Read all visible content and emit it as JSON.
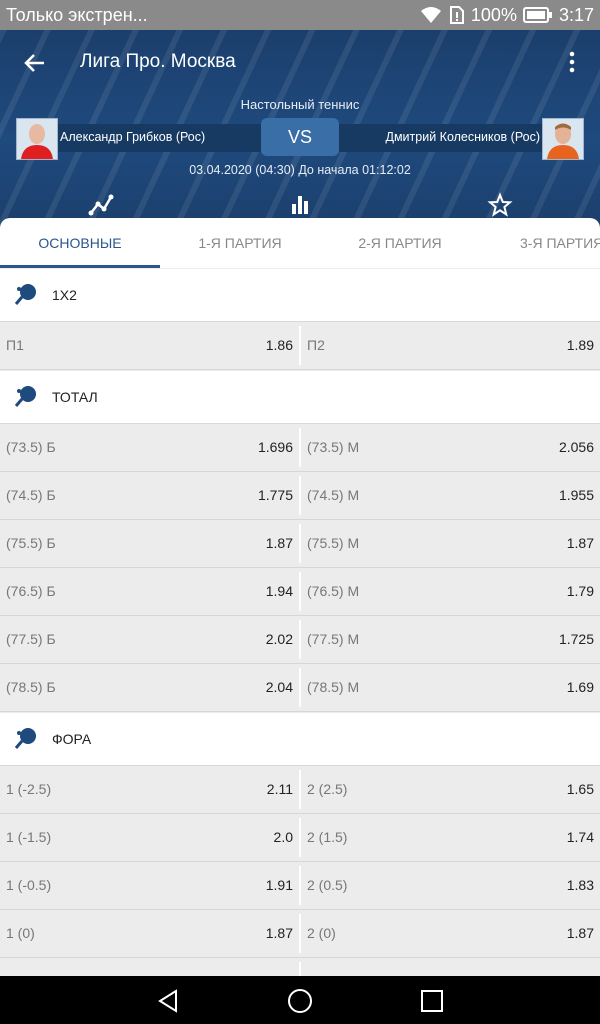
{
  "status": {
    "notification": "Только экстрен...",
    "battery": "100%",
    "time": "3:17"
  },
  "header": {
    "title": "Лига Про. Москва",
    "sport": "Настольный теннис",
    "player1": "Александр Грибков (Рос)",
    "player2": "Дмитрий Колесников (Рос)",
    "vs": "VS",
    "date": "03.04.2020 (04:30) До начала 01:12:02"
  },
  "tabs": [
    "ОСНОВНЫЕ",
    "1-Я ПАРТИЯ",
    "2-Я ПАРТИЯ",
    "3-Я ПАРТИЯ"
  ],
  "sections": {
    "s1x2": {
      "label": "1X2",
      "rows": [
        {
          "l": "П1",
          "lv": "1.86",
          "r": "П2",
          "rv": "1.89"
        }
      ]
    },
    "total": {
      "label": "ТОТАЛ",
      "rows": [
        {
          "l": "(73.5) Б",
          "lv": "1.696",
          "r": "(73.5) М",
          "rv": "2.056"
        },
        {
          "l": "(74.5) Б",
          "lv": "1.775",
          "r": "(74.5) М",
          "rv": "1.955"
        },
        {
          "l": "(75.5) Б",
          "lv": "1.87",
          "r": "(75.5) М",
          "rv": "1.87"
        },
        {
          "l": "(76.5) Б",
          "lv": "1.94",
          "r": "(76.5) М",
          "rv": "1.79"
        },
        {
          "l": "(77.5) Б",
          "lv": "2.02",
          "r": "(77.5) М",
          "rv": "1.725"
        },
        {
          "l": "(78.5) Б",
          "lv": "2.04",
          "r": "(78.5) М",
          "rv": "1.69"
        }
      ]
    },
    "fora": {
      "label": "ФОРА",
      "rows": [
        {
          "l": "1 (-2.5)",
          "lv": "2.11",
          "r": "2 (2.5)",
          "rv": "1.65"
        },
        {
          "l": "1 (-1.5)",
          "lv": "2.0",
          "r": "2 (1.5)",
          "rv": "1.74"
        },
        {
          "l": "1 (-0.5)",
          "lv": "1.91",
          "r": "2 (0.5)",
          "rv": "1.83"
        },
        {
          "l": "1 (0)",
          "lv": "1.87",
          "r": "2 (0)",
          "rv": "1.87"
        }
      ]
    }
  },
  "colors": {
    "header": "#1f4a7e",
    "accent": "#2a568c",
    "vs": "#3a6ea6"
  }
}
